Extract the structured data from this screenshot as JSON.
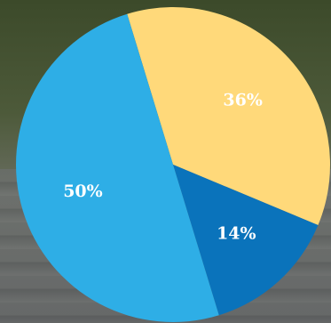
{
  "chart_data": {
    "type": "pie",
    "slices": [
      {
        "label": "36%",
        "value": 36,
        "color": "#ffd97a"
      },
      {
        "label": "14%",
        "value": 14,
        "color": "#0a73bb"
      },
      {
        "label": "50%",
        "value": 50,
        "color": "#2eaee6"
      }
    ]
  }
}
